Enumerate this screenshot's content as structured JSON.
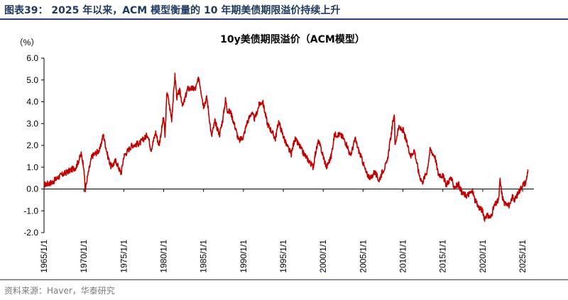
{
  "figure_title": "图表39： 2025 年以来，ACM 模型衡量的 10 年期美债期限溢价持续上升",
  "source": "资料来源：Haver，华泰研究",
  "colors": {
    "series": "#c00000",
    "header_rule": "#2a3f73",
    "axis": "#000000"
  },
  "chart_data": {
    "type": "line",
    "title": "10y美债期限溢价（ACM模型）",
    "ylabel": "（%）",
    "ylim": [
      -2.0,
      6.0
    ],
    "yticks": [
      6.0,
      5.0,
      4.0,
      3.0,
      2.0,
      1.0,
      0.0,
      -1.0,
      -2.0
    ],
    "ytick_labels": [
      "6.0",
      "5.0",
      "4.0",
      "3.0",
      "2.0",
      "1.0",
      "0.0",
      "-1.0",
      "-2.0"
    ],
    "xlim": [
      "1965-01-01",
      "2026-06-01"
    ],
    "xticks": [
      "1965-01-01",
      "1970-01-01",
      "1975-01-01",
      "1980-01-01",
      "1985-01-01",
      "1990-01-01",
      "1995-01-01",
      "2000-01-01",
      "2005-01-01",
      "2010-01-01",
      "2015-01-01",
      "2020-01-01",
      "2025-01-01"
    ],
    "xtick_labels": [
      "1965/1/1",
      "1970/1/1",
      "1975/1/1",
      "1980/1/1",
      "1985/1/1",
      "1990/1/1",
      "1995/1/1",
      "2000/1/1",
      "2005/1/1",
      "2010/1/1",
      "2015/1/1",
      "2020/1/1",
      "2025/1/1"
    ],
    "grid": false,
    "series": [
      {
        "x": [
          "1965-01",
          "1966-01",
          "1967-01",
          "1968-01",
          "1969-01",
          "1969-09",
          "1970-01",
          "1970-03",
          "1970-06",
          "1971-01",
          "1972-01",
          "1972-06",
          "1973-01",
          "1973-06",
          "1974-01",
          "1974-09",
          "1975-01",
          "1976-01",
          "1977-01",
          "1978-01",
          "1978-06",
          "1979-01",
          "1979-06",
          "1980-01",
          "1980-03",
          "1980-06",
          "1981-01",
          "1981-06",
          "1981-09",
          "1982-01",
          "1982-06",
          "1983-01",
          "1984-01",
          "1984-06",
          "1985-01",
          "1985-06",
          "1986-01",
          "1986-06",
          "1987-01",
          "1987-06",
          "1987-10",
          "1988-01",
          "1988-06",
          "1989-01",
          "1989-06",
          "1990-01",
          "1990-06",
          "1991-01",
          "1991-06",
          "1992-01",
          "1992-06",
          "1993-01",
          "1993-10",
          "1994-01",
          "1994-06",
          "1994-11",
          "1995-06",
          "1996-01",
          "1996-06",
          "1997-01",
          "1997-06",
          "1998-01",
          "1998-10",
          "1999-01",
          "1999-06",
          "2000-01",
          "2000-06",
          "2001-01",
          "2001-06",
          "2002-01",
          "2002-06",
          "2003-01",
          "2003-06",
          "2004-01",
          "2004-06",
          "2005-01",
          "2005-06",
          "2006-01",
          "2006-06",
          "2007-01",
          "2007-06",
          "2008-01",
          "2008-12",
          "2009-01",
          "2009-06",
          "2010-01",
          "2010-06",
          "2011-01",
          "2011-06",
          "2012-01",
          "2012-06",
          "2013-01",
          "2013-06",
          "2014-01",
          "2014-06",
          "2015-01",
          "2015-06",
          "2016-01",
          "2016-06",
          "2017-01",
          "2017-06",
          "2018-01",
          "2018-10",
          "2019-01",
          "2019-06",
          "2020-01",
          "2020-03",
          "2020-06",
          "2021-01",
          "2021-06",
          "2022-01",
          "2022-03",
          "2022-06",
          "2022-10",
          "2023-01",
          "2023-06",
          "2023-10",
          "2024-01",
          "2024-06",
          "2025-01",
          "2025-06",
          "2025-09"
        ],
        "values": [
          0.2,
          0.3,
          0.6,
          0.8,
          1.0,
          1.6,
          1.0,
          -0.1,
          0.5,
          1.5,
          1.8,
          2.5,
          1.5,
          1.0,
          1.3,
          0.7,
          1.5,
          2.0,
          2.1,
          2.5,
          1.8,
          2.6,
          2.0,
          3.3,
          2.4,
          4.5,
          3.2,
          5.2,
          4.2,
          4.5,
          3.8,
          4.6,
          4.6,
          5.1,
          3.8,
          4.2,
          2.4,
          3.1,
          2.5,
          3.2,
          4.1,
          3.6,
          3.5,
          2.8,
          2.2,
          2.4,
          3.0,
          3.5,
          3.2,
          3.9,
          4.0,
          3.0,
          2.5,
          2.3,
          3.1,
          2.6,
          2.0,
          1.6,
          2.3,
          2.0,
          1.7,
          1.4,
          1.0,
          1.6,
          2.2,
          1.5,
          1.0,
          1.5,
          2.5,
          2.5,
          2.4,
          2.0,
          1.5,
          2.3,
          1.8,
          1.2,
          0.7,
          0.5,
          0.8,
          0.4,
          0.8,
          1.2,
          3.5,
          2.0,
          2.8,
          2.7,
          2.2,
          1.5,
          1.8,
          0.7,
          0.3,
          0.8,
          1.8,
          1.5,
          0.7,
          0.6,
          0.2,
          0.5,
          0.1,
          0.2,
          -0.2,
          -0.3,
          -0.1,
          -0.5,
          -0.8,
          -1.0,
          -1.4,
          -1.2,
          -1.3,
          -0.8,
          -0.5,
          0.4,
          -0.3,
          -0.7,
          -0.6,
          -0.8,
          -0.3,
          -0.5,
          -0.2,
          0.2,
          0.3,
          0.9
        ]
      }
    ]
  }
}
